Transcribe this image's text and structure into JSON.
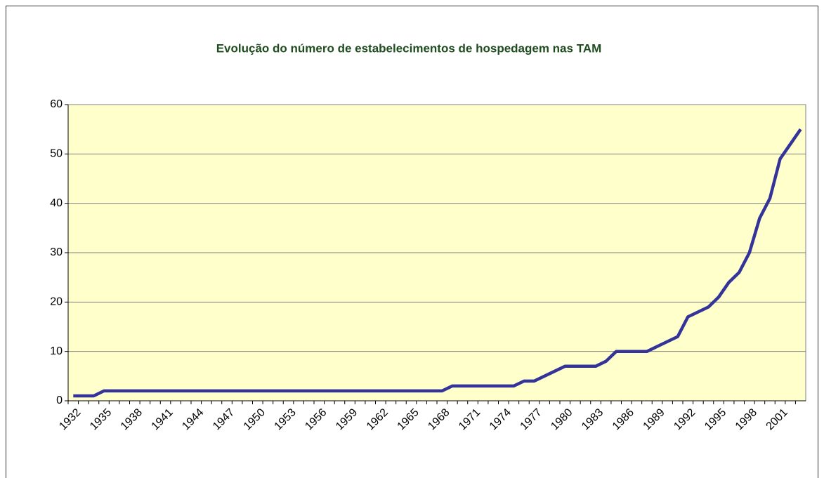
{
  "chart_data": {
    "type": "line",
    "title": "Evolução do número de estabelecimentos de hospedagem nas TAM",
    "categories": [
      "1932",
      null,
      null,
      "1935",
      null,
      null,
      "1938",
      null,
      null,
      "1941",
      null,
      null,
      "1944",
      null,
      null,
      "1947",
      null,
      null,
      "1950",
      null,
      null,
      "1953",
      null,
      null,
      "1956",
      null,
      null,
      "1959",
      null,
      null,
      "1962",
      null,
      null,
      "1965",
      null,
      null,
      "1968",
      null,
      null,
      "1971",
      null,
      null,
      "1974",
      null,
      null,
      "1977",
      null,
      null,
      "1980",
      null,
      null,
      "1983",
      null,
      null,
      "1986",
      null,
      null,
      "1989",
      null,
      null,
      "1992",
      null,
      null,
      "1995",
      null,
      null,
      "1998",
      null,
      null,
      "2001",
      null,
      null
    ],
    "values": [
      1,
      1,
      1,
      2,
      2,
      2,
      2,
      2,
      2,
      2,
      2,
      2,
      2,
      2,
      2,
      2,
      2,
      2,
      2,
      2,
      2,
      2,
      2,
      2,
      2,
      2,
      2,
      2,
      2,
      2,
      2,
      2,
      2,
      2,
      2,
      2,
      2,
      3,
      3,
      3,
      3,
      3,
      3,
      3,
      4,
      4,
      5,
      6,
      7,
      7,
      7,
      7,
      8,
      10,
      10,
      10,
      10,
      11,
      12,
      13,
      17,
      18,
      19,
      21,
      24,
      26,
      30,
      37,
      41,
      49,
      52,
      55
    ],
    "color": "#333399",
    "ylim": [
      0,
      60
    ],
    "yticks": [
      0,
      10,
      20,
      30,
      40,
      50,
      60
    ],
    "grid": true
  }
}
